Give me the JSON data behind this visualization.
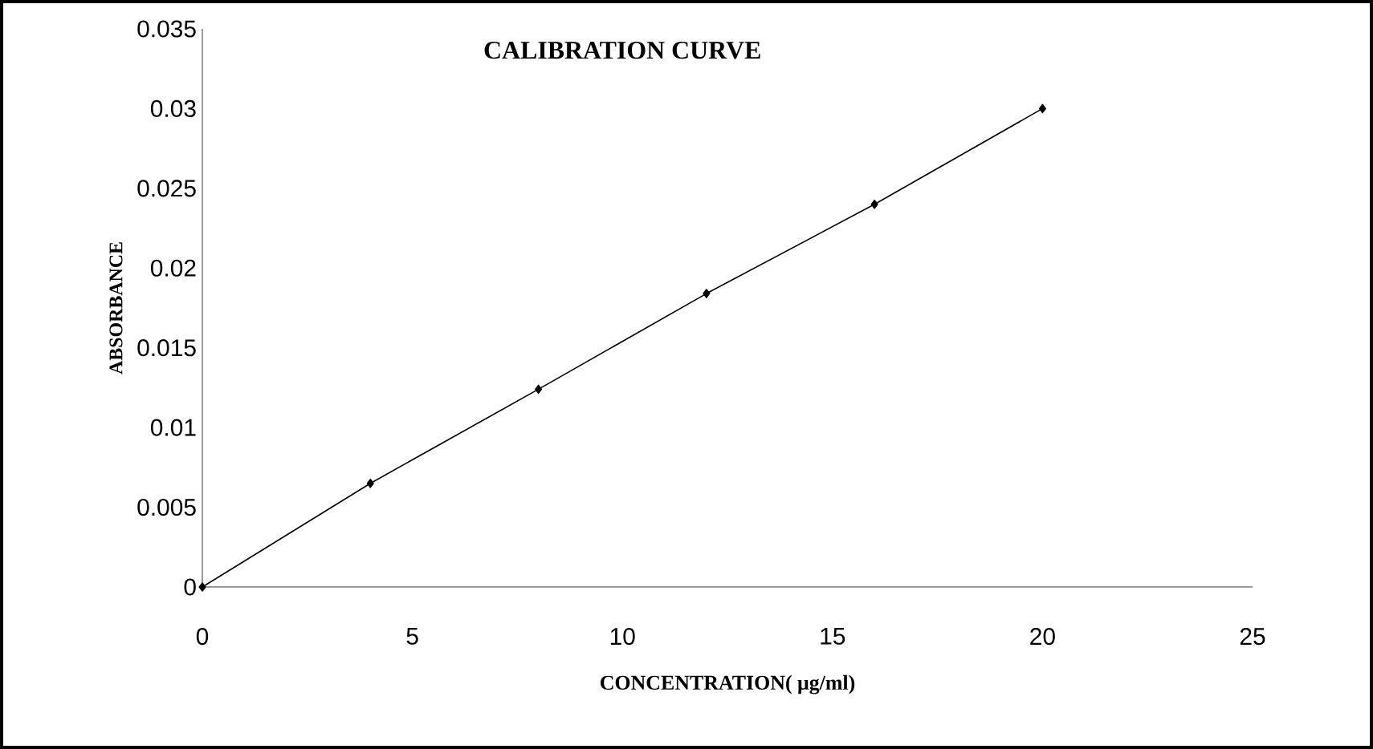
{
  "chart_data": {
    "type": "line",
    "title": "CALIBRATION CURVE",
    "xlabel": "CONCENTRATION( μg/ml)",
    "ylabel": "ABSORBANCE",
    "x": [
      0,
      4,
      8,
      12,
      16,
      20
    ],
    "series": [
      {
        "color": "#000000",
        "values": [
          0,
          0.0065,
          0.0124,
          0.0184,
          0.024,
          0.03
        ]
      }
    ],
    "xlim": [
      0,
      25
    ],
    "xticks": [
      0,
      5,
      10,
      15,
      20,
      25
    ],
    "ylim": [
      0,
      0.035
    ],
    "yticks": [
      0,
      0.005,
      0.01,
      0.015,
      0.02,
      0.025,
      0.03,
      0.035
    ],
    "grid": false,
    "marker": "diamond",
    "line_style": "solid"
  }
}
